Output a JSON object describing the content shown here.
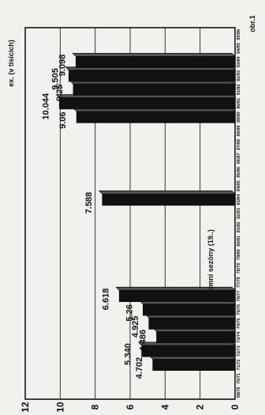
{
  "chart_data": {
    "type": "bar",
    "orientation": "rotated-90",
    "figure_label": "obr.1",
    "ylabel": "ex. (v tisícich)",
    "xlabel": "zimní sezóny (19..)",
    "ylim": [
      0,
      12
    ],
    "yticks": [
      "0",
      "2",
      "4",
      "6",
      "8",
      "10",
      "12"
    ],
    "categories": [
      "69/70",
      "70/71",
      "71/72",
      "72/73",
      "73/74",
      "74/75",
      "75/76",
      "76/77",
      "77/78",
      "78/79",
      "79/80",
      "80/81",
      "81/82",
      "82/83",
      "83/84",
      "84/85",
      "85/86",
      "86/87",
      "87/88",
      "88/89",
      "89/90",
      "90/91",
      "91/92",
      "92/93",
      "93/94",
      "94/95",
      "95/96"
    ],
    "values": [
      null,
      null,
      4.702,
      5.34,
      4.486,
      4.925,
      5.26,
      6.618,
      null,
      null,
      null,
      null,
      null,
      null,
      7.588,
      null,
      null,
      null,
      null,
      null,
      9.06,
      10.044,
      9.25,
      9.505,
      9.098,
      null,
      null
    ],
    "data_labels": [
      "",
      "",
      "4.702",
      "5.340",
      "4.486",
      "4.925",
      "5.26",
      "6.618",
      "",
      "",
      "",
      "",
      "",
      "",
      "7.588",
      "",
      "",
      "",
      "",
      "",
      "9.06",
      "10.044",
      "9.25",
      "9.505",
      "9.098",
      "",
      ""
    ],
    "bar_color": "#111111",
    "grid": true
  }
}
